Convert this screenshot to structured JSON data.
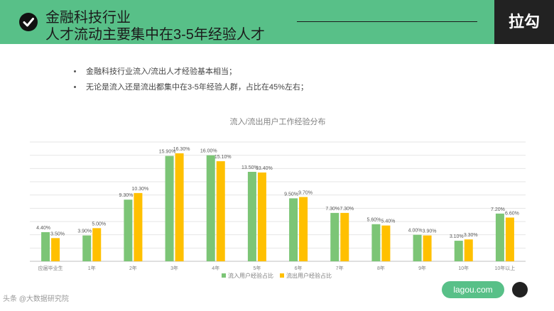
{
  "header": {
    "title_line1": "金融科技行业",
    "title_line2": "人才流动主要集中在3-5年经验人才",
    "brand": "拉勾"
  },
  "bullets": [
    "金融科技行业流入/流出人才经验基本相当；",
    "无论是流入还是流出都集中在3-5年经验人群，占比在45%左右；"
  ],
  "footer": {
    "site": "lagou.com",
    "watermark": "头条 @大数据研究院"
  },
  "chart_data": {
    "type": "bar",
    "title": "流入/流出用户工作经验分布",
    "categories": [
      "应届毕业生",
      "1年",
      "2年",
      "3年",
      "4年",
      "5年",
      "6年",
      "7年",
      "8年",
      "9年",
      "10年",
      "10年以上"
    ],
    "series": [
      {
        "name": "流入用户经验占比",
        "color": "#7cc576",
        "values": [
          4.4,
          3.9,
          9.3,
          15.9,
          16.0,
          13.5,
          9.5,
          7.3,
          5.6,
          4.0,
          3.1,
          7.2
        ],
        "labels": [
          "4.40%",
          "3.90%",
          "9.30%",
          "15.90%",
          "16.00%",
          "13.50%",
          "9.50%",
          "7.30%",
          "5.60%",
          "4.00%",
          "3.10%",
          "7.20%"
        ]
      },
      {
        "name": "流出用户经验占比",
        "color": "#ffc000",
        "values": [
          3.5,
          5.0,
          10.3,
          16.3,
          15.1,
          13.4,
          9.7,
          7.3,
          5.4,
          3.9,
          3.3,
          6.6
        ],
        "labels": [
          "3.50%",
          "5.00%",
          "10.30%",
          "16.30%",
          "15.10%",
          "13.40%",
          "9.70%",
          "7.30%",
          "5.40%",
          "3.90%",
          "3.30%",
          "6.60%"
        ]
      }
    ],
    "ylim": [
      0,
      18
    ],
    "grid": true,
    "legend": "bottom"
  }
}
